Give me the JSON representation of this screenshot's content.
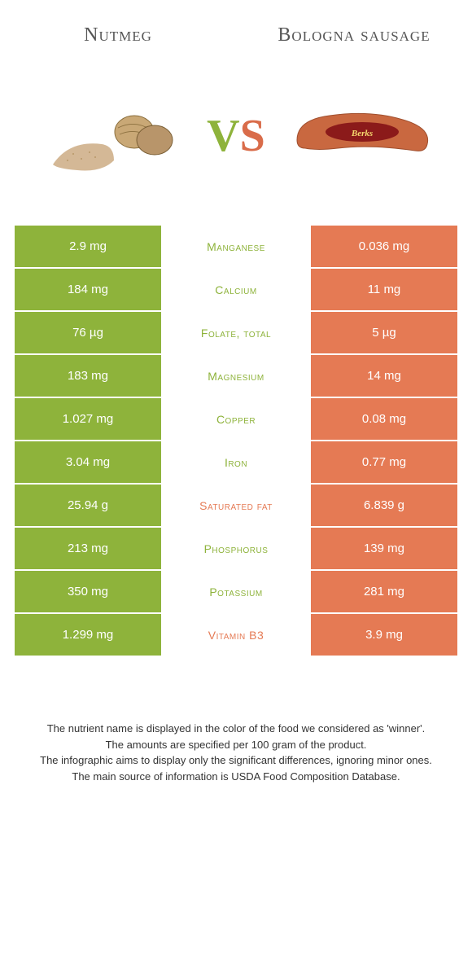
{
  "titles": {
    "left": "Nutmeg",
    "right": "Bologna sausage"
  },
  "vs": {
    "v": "V",
    "s": "S"
  },
  "colors": {
    "left": "#8eb33b",
    "right": "#e57a54",
    "text": "#555555"
  },
  "rows": [
    {
      "left": "2.9 mg",
      "mid": "Manganese",
      "right": "0.036 mg",
      "winner": "left"
    },
    {
      "left": "184 mg",
      "mid": "Calcium",
      "right": "11 mg",
      "winner": "left"
    },
    {
      "left": "76 µg",
      "mid": "Folate, total",
      "right": "5 µg",
      "winner": "left"
    },
    {
      "left": "183 mg",
      "mid": "Magnesium",
      "right": "14 mg",
      "winner": "left"
    },
    {
      "left": "1.027 mg",
      "mid": "Copper",
      "right": "0.08 mg",
      "winner": "left"
    },
    {
      "left": "3.04 mg",
      "mid": "Iron",
      "right": "0.77 mg",
      "winner": "left"
    },
    {
      "left": "25.94 g",
      "mid": "Saturated fat",
      "right": "6.839 g",
      "winner": "right"
    },
    {
      "left": "213 mg",
      "mid": "Phosphorus",
      "right": "139 mg",
      "winner": "left"
    },
    {
      "left": "350 mg",
      "mid": "Potassium",
      "right": "281 mg",
      "winner": "left"
    },
    {
      "left": "1.299 mg",
      "mid": "Vitamin B3",
      "right": "3.9 mg",
      "winner": "right"
    }
  ],
  "footnotes": [
    "The nutrient name is displayed in the color of the food we considered as 'winner'.",
    "The amounts are specified per 100 gram of the product.",
    "The infographic aims to display only the significant differences, ignoring minor ones.",
    "The main source of information is USDA Food Composition Database."
  ]
}
